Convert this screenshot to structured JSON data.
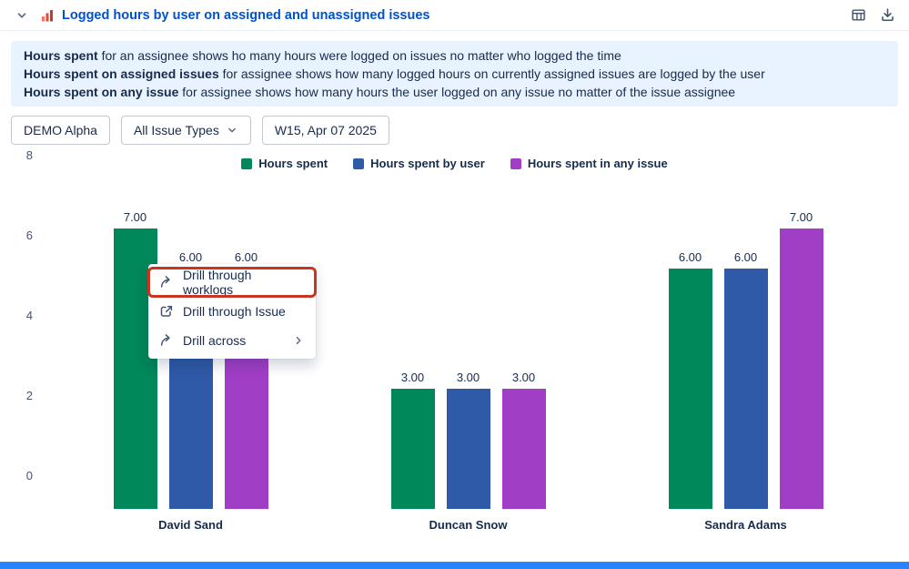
{
  "header": {
    "title": "Logged hours by user on assigned and unassigned issues"
  },
  "info_banner": {
    "lines": [
      {
        "bold": "Hours spent",
        "rest": " for an assignee shows ho many hours were logged on issues no matter who logged the time"
      },
      {
        "bold": "Hours spent on assigned issues",
        "rest": " for assignee shows how many logged hours on currently assigned issues are logged by the user"
      },
      {
        "bold": "Hours spent on any issue",
        "rest": " for assignee shows how many hours the user logged on any issue no matter of the issue assignee"
      }
    ]
  },
  "filters": {
    "project_label": "DEMO Alpha",
    "issue_type_label": "All Issue Types",
    "week_label": "W15, Apr 07 2025"
  },
  "context_menu": {
    "items": [
      {
        "label": "Drill through worklogs",
        "highlighted": true
      },
      {
        "label": "Drill through Issue",
        "highlighted": false
      },
      {
        "label": "Drill across",
        "highlighted": false,
        "has_submenu": true
      }
    ]
  },
  "chart_data": {
    "type": "bar",
    "title": "Logged hours by user on assigned and unassigned issues",
    "categories": [
      "David Sand",
      "Duncan Snow",
      "Sandra Adams"
    ],
    "series": [
      {
        "name": "Hours spent",
        "color": "#00875A",
        "values": [
          7,
          3,
          6
        ]
      },
      {
        "name": "Hours spent by user",
        "color": "#2E5AA7",
        "values": [
          6,
          3,
          6
        ]
      },
      {
        "name": "Hours spent in any issue",
        "color": "#A13EC6",
        "values": [
          6,
          3,
          7
        ]
      }
    ],
    "ylim": [
      0,
      8
    ],
    "yticks": [
      0,
      2,
      4,
      6,
      8
    ],
    "value_label_decimals": 2,
    "legend_position": "top",
    "grid": false
  },
  "colors": {
    "title": "#0052CC",
    "banner_bg": "#E9F2FF",
    "text": "#172B4D",
    "highlight_border": "#CA3521",
    "footer_bar": "#2684FF"
  }
}
